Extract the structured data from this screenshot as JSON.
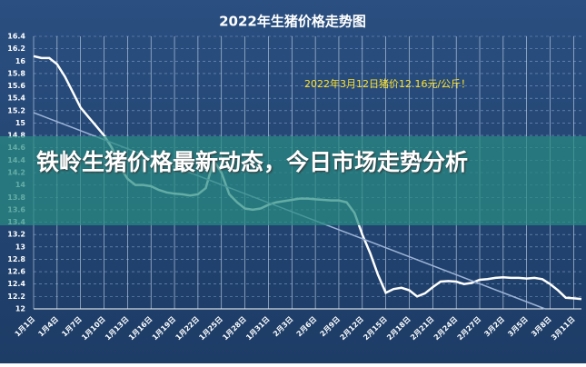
{
  "chart_data": {
    "type": "line",
    "title": "2022年生猪价格走势图",
    "annotation": "2022年3月12日猪价12.16元/公斤！",
    "categories": [
      "1月1日",
      null,
      null,
      "1月4日",
      null,
      null,
      "1月7日",
      null,
      null,
      "1月10日",
      null,
      null,
      "1月13日",
      null,
      null,
      "1月16日",
      null,
      null,
      "1月19日",
      null,
      null,
      "1月22日",
      null,
      null,
      "1月25日",
      null,
      null,
      "1月28日",
      null,
      null,
      "1月31日",
      null,
      null,
      "2月3日",
      null,
      null,
      "2月6日",
      null,
      null,
      "2月9日",
      null,
      null,
      "2月12日",
      null,
      null,
      "2月15日",
      null,
      null,
      "2月18日",
      null,
      null,
      "2月21日",
      null,
      null,
      "2月24日",
      null,
      null,
      "2月27日",
      null,
      null,
      "3月2日",
      null,
      null,
      "3月5日",
      null,
      null,
      "3月8日",
      null,
      null,
      "3月11日",
      null
    ],
    "series": [
      {
        "color": "#ffffff",
        "values": [
          16.08,
          16.05,
          16.05,
          15.95,
          15.75,
          15.5,
          15.25,
          15.1,
          14.95,
          14.8,
          14.6,
          14.3,
          14.1,
          14.0,
          14.0,
          13.98,
          13.92,
          13.88,
          13.86,
          13.85,
          13.83,
          13.85,
          13.95,
          14.4,
          14.2,
          13.85,
          13.72,
          13.62,
          13.6,
          13.62,
          13.68,
          13.72,
          13.74,
          13.76,
          13.78,
          13.78,
          13.77,
          13.76,
          13.75,
          13.75,
          13.72,
          13.55,
          13.2,
          12.9,
          12.55,
          12.26,
          12.32,
          12.34,
          12.3,
          12.2,
          12.25,
          12.35,
          12.44,
          12.45,
          12.44,
          12.4,
          12.42,
          12.47,
          12.48,
          12.5,
          12.51,
          12.5,
          12.5,
          12.49,
          12.5,
          12.48,
          12.4,
          12.3,
          12.18,
          12.17,
          12.16
        ]
      }
    ],
    "ylim": [
      12,
      16.4
    ],
    "yticks": [
      12,
      12.2,
      12.4,
      12.6,
      12.8,
      13,
      13.2,
      13.4,
      13.6,
      13.8,
      14,
      14.2,
      14.4,
      14.6,
      14.8,
      15,
      15.2,
      15.4,
      15.6,
      15.8,
      16,
      16.2,
      16.4
    ],
    "grid": true
  },
  "banner": {
    "title": "铁岭生猪价格最新动态，今日市场走势分析"
  }
}
